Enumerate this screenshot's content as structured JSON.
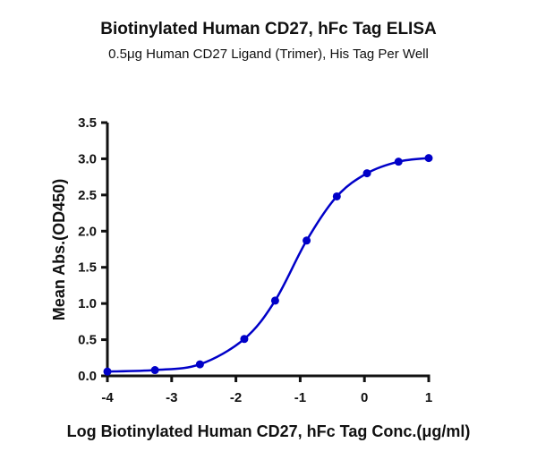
{
  "chart_data": {
    "type": "line",
    "title": "Biotinylated Human CD27, hFc Tag ELISA",
    "subtitle": "0.5μg Human CD27 Ligand (Trimer), His Tag Per Well",
    "xlabel": "Log Biotinylated Human CD27, hFc Tag Conc.(μg/ml)",
    "ylabel": "Mean Abs.(OD450)",
    "xlim": [
      -4,
      1
    ],
    "ylim": [
      0,
      3.5
    ],
    "xticks": [
      "-4",
      "-3",
      "-2",
      "-1",
      "0",
      "1"
    ],
    "yticks": [
      "0.0",
      "0.5",
      "1.0",
      "1.5",
      "2.0",
      "2.5",
      "3.0",
      "3.5"
    ],
    "grid": false,
    "color": "#0000c8",
    "series": [
      {
        "x": [
          -4.0,
          -3.26,
          -2.56,
          -1.87,
          -1.39,
          -0.9,
          -0.43,
          0.04,
          0.53,
          1.0
        ],
        "y": [
          0.06,
          0.08,
          0.16,
          0.51,
          1.04,
          1.87,
          2.48,
          2.8,
          2.96,
          3.01
        ]
      }
    ]
  }
}
